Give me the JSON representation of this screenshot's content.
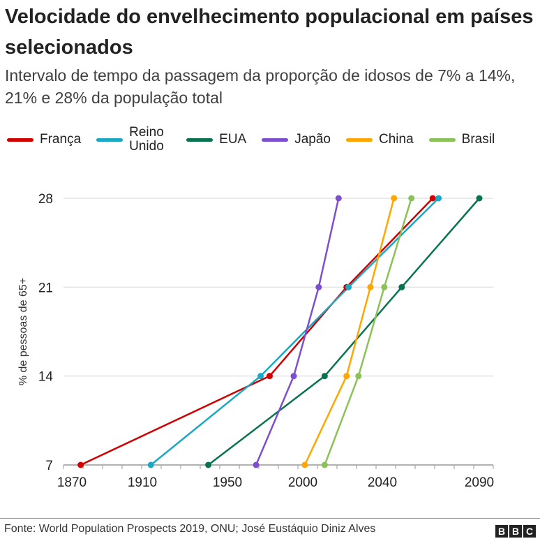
{
  "title": "Velocidade do envelhecimento populacional em países selecionados",
  "subtitle": "Intervalo de tempo da passagem da proporção de idosos de 7% a 14%, 21% e 28% da população total",
  "footer": {
    "source": "Fonte: World Population Prospects 2019, ONU; José Eustáquio Diniz Alves",
    "logo": [
      "B",
      "B",
      "C"
    ]
  },
  "chart_data": {
    "type": "line",
    "title": "Velocidade do envelhecimento populacional em países selecionados",
    "ylabel": "% de pessoas de 65+",
    "xlabel": "",
    "xticks": [
      1870,
      1910,
      1950,
      2000,
      2040,
      2090
    ],
    "yticks": [
      7,
      14,
      21,
      28
    ],
    "xlim": [
      1865,
      2095
    ],
    "ylim": [
      7,
      28
    ],
    "grid": "horizontal",
    "legend": "top",
    "series": [
      {
        "name": "França",
        "color": "#d10000",
        "points": [
          [
            1875,
            7
          ],
          [
            1978,
            14
          ],
          [
            2022,
            21
          ],
          [
            2066,
            28
          ]
        ]
      },
      {
        "name": "Reino Unido",
        "color": "#1ba8c4",
        "points": [
          [
            1914,
            7
          ],
          [
            1972,
            14
          ],
          [
            2023,
            21
          ],
          [
            2069,
            28
          ]
        ]
      },
      {
        "name": "EUA",
        "color": "#08744f",
        "points": [
          [
            1941,
            7
          ],
          [
            2011,
            14
          ],
          [
            2050,
            21
          ],
          [
            2090,
            28
          ]
        ]
      },
      {
        "name": "Japão",
        "color": "#7d4fcf",
        "points": [
          [
            1969,
            7
          ],
          [
            1994,
            14
          ],
          [
            2008,
            21
          ],
          [
            2018,
            28
          ]
        ]
      },
      {
        "name": "China",
        "color": "#ffa600",
        "points": [
          [
            2001,
            7
          ],
          [
            2022,
            14
          ],
          [
            2034,
            21
          ],
          [
            2046,
            28
          ]
        ]
      },
      {
        "name": "Brasil",
        "color": "#8bc157",
        "points": [
          [
            2011,
            7
          ],
          [
            2028,
            14
          ],
          [
            2041,
            21
          ],
          [
            2055,
            28
          ]
        ]
      }
    ]
  }
}
